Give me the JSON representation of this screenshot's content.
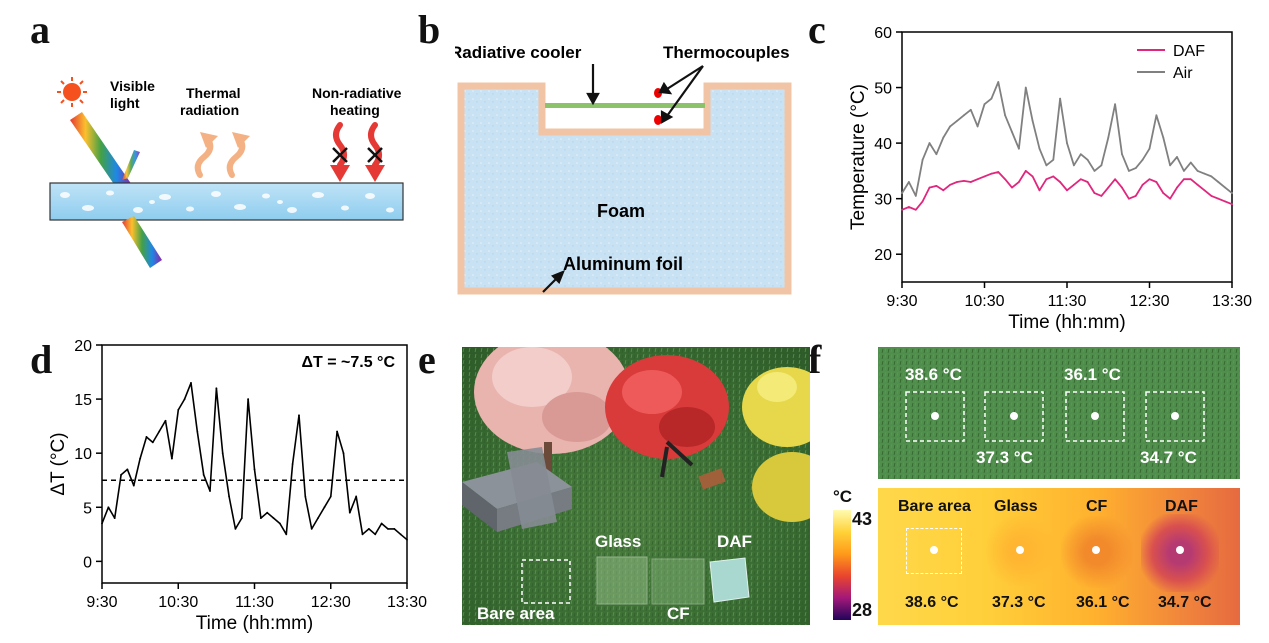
{
  "panel_labels": {
    "a": "a",
    "b": "b",
    "c": "c",
    "d": "d",
    "e": "e",
    "f": "f"
  },
  "panel_a": {
    "visible_light": [
      "Visible",
      "light"
    ],
    "thermal_radiation": [
      "Thermal",
      "radiation"
    ],
    "nonradiative_heating": [
      "Non-radiative",
      "heating"
    ]
  },
  "panel_b": {
    "radiative_cooler": "Radiative cooler",
    "thermocouples": "Thermocouples",
    "foam": "Foam",
    "aluminum_foil": "Aluminum foil"
  },
  "panel_e": {
    "glass": "Glass",
    "daf": "DAF",
    "bare_area": "Bare area",
    "cf": "CF"
  },
  "panel_f": {
    "top_temps": [
      "38.6 °C",
      "36.1 °C",
      "37.3 °C",
      "34.7 °C"
    ],
    "colorbar_unit": "°C",
    "colorbar_max": "43",
    "colorbar_min": "28",
    "bottom_labels": [
      "Bare area",
      "Glass",
      "CF",
      "DAF"
    ],
    "bottom_temps": [
      "38.6 °C",
      "37.3 °C",
      "36.1 °C",
      "34.7 °C"
    ]
  },
  "colors": {
    "daf": "#e0267d",
    "air": "#808080",
    "dt": "#000000",
    "skin": "#f1c4a5"
  },
  "chart_data": [
    {
      "type": "line",
      "panel": "c",
      "xlabel": "Time (hh:mm)",
      "ylabel": "Temperature (°C)",
      "ylim": [
        15,
        60
      ],
      "yticks": [
        20,
        30,
        40,
        50,
        60
      ],
      "xticks": [
        "9:30",
        "10:30",
        "11:30",
        "12:30",
        "13:30"
      ],
      "legend_position": "top-right",
      "x": [
        0,
        5,
        10,
        15,
        20,
        25,
        30,
        35,
        40,
        45,
        50,
        55,
        60,
        65,
        70,
        75,
        80,
        85,
        90,
        95,
        100,
        105,
        110,
        115,
        120,
        125,
        130,
        135,
        140,
        145,
        150,
        155,
        160,
        165,
        170,
        175,
        180,
        185,
        190,
        195,
        200,
        205,
        210,
        215,
        220,
        225,
        230,
        235,
        240
      ],
      "series": [
        {
          "name": "DAF",
          "values": [
            28,
            28.5,
            28,
            29.5,
            32,
            32.3,
            31.5,
            32.5,
            33,
            33.2,
            33,
            33.5,
            34,
            34.5,
            34.8,
            33.5,
            32,
            33,
            35,
            34,
            31.5,
            33.5,
            34,
            33,
            31.5,
            32.5,
            33.5,
            33,
            31,
            30.5,
            32,
            33.5,
            32,
            30,
            30.5,
            32.5,
            33.5,
            33,
            31,
            30,
            32,
            33.5,
            33.5,
            32.5,
            31.5,
            30.5,
            30,
            29.5,
            29
          ]
        },
        {
          "name": "Air",
          "values": [
            31,
            33,
            30.5,
            37,
            40,
            38,
            41,
            43,
            44,
            45,
            46,
            43,
            47,
            48,
            51,
            45,
            42,
            39,
            50,
            44,
            39,
            36,
            37,
            48,
            40,
            36,
            38,
            37,
            35,
            36,
            41,
            47,
            38,
            35,
            35.5,
            37,
            39,
            45,
            41,
            36,
            37.5,
            35,
            36.5,
            35,
            34.5,
            34,
            33,
            32,
            31
          ]
        }
      ]
    },
    {
      "type": "line",
      "panel": "d",
      "xlabel": "Time (hh:mm)",
      "ylabel": "ΔT (°C)",
      "ylim": [
        -2,
        20
      ],
      "yticks": [
        0,
        5,
        10,
        15,
        20
      ],
      "xticks": [
        "9:30",
        "10:30",
        "11:30",
        "12:30",
        "13:30"
      ],
      "annotation": "ΔT = ~7.5 °C",
      "reference_line": 7.5,
      "x": [
        0,
        5,
        10,
        15,
        20,
        25,
        30,
        35,
        40,
        45,
        50,
        55,
        60,
        65,
        70,
        75,
        80,
        85,
        90,
        95,
        100,
        105,
        110,
        115,
        120,
        125,
        130,
        135,
        140,
        145,
        150,
        155,
        160,
        165,
        170,
        175,
        180,
        185,
        190,
        195,
        200,
        205,
        210,
        215,
        220,
        225,
        230,
        235,
        240
      ],
      "series": [
        {
          "name": "",
          "values": [
            3.5,
            5,
            4,
            8,
            8.5,
            7,
            9.5,
            11.5,
            11,
            12,
            13,
            9.5,
            14,
            15,
            16.5,
            12,
            8,
            6.5,
            16,
            10,
            6,
            3,
            4,
            15,
            8.5,
            4,
            4.5,
            4,
            3.5,
            2.5,
            9,
            13.5,
            6,
            3,
            4,
            5,
            6,
            12,
            10,
            4.5,
            6,
            2.5,
            3,
            2.5,
            3.5,
            3,
            3,
            2.5,
            2
          ]
        }
      ]
    }
  ]
}
